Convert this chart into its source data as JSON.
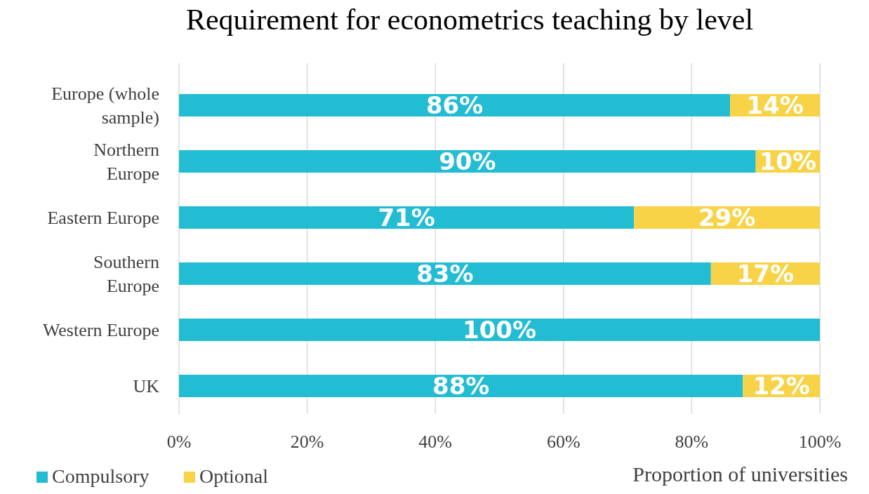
{
  "chart_data": {
    "type": "bar",
    "orientation": "horizontal",
    "stacked": true,
    "title": "Requirement for econometrics teaching by level",
    "xlabel": "Proportion of universities",
    "categories": [
      "Europe (whole sample)",
      "Northern Europe",
      "Eastern Europe",
      "Southern Europe",
      "Western Europe",
      "UK"
    ],
    "series": [
      {
        "name": "Compulsory",
        "color": "#22bcd3",
        "values": [
          86,
          90,
          71,
          83,
          100,
          88
        ],
        "value_labels": [
          "86%",
          "90%",
          "71%",
          "83%",
          "100%",
          "88%"
        ]
      },
      {
        "name": "Optional",
        "color": "#f8d347",
        "values": [
          14,
          10,
          29,
          17,
          0,
          12
        ],
        "value_labels": [
          "14%",
          "10%",
          "29%",
          "17%",
          null,
          "12%"
        ]
      }
    ],
    "xlim": [
      0,
      100
    ],
    "xticks": [
      {
        "value": 0,
        "label": "0%"
      },
      {
        "value": 20,
        "label": "20%"
      },
      {
        "value": 40,
        "label": "40%"
      },
      {
        "value": 60,
        "label": "60%"
      },
      {
        "value": 80,
        "label": "80%"
      },
      {
        "value": 100,
        "label": "100%"
      }
    ],
    "grid": "x",
    "legend": "bottom left"
  }
}
